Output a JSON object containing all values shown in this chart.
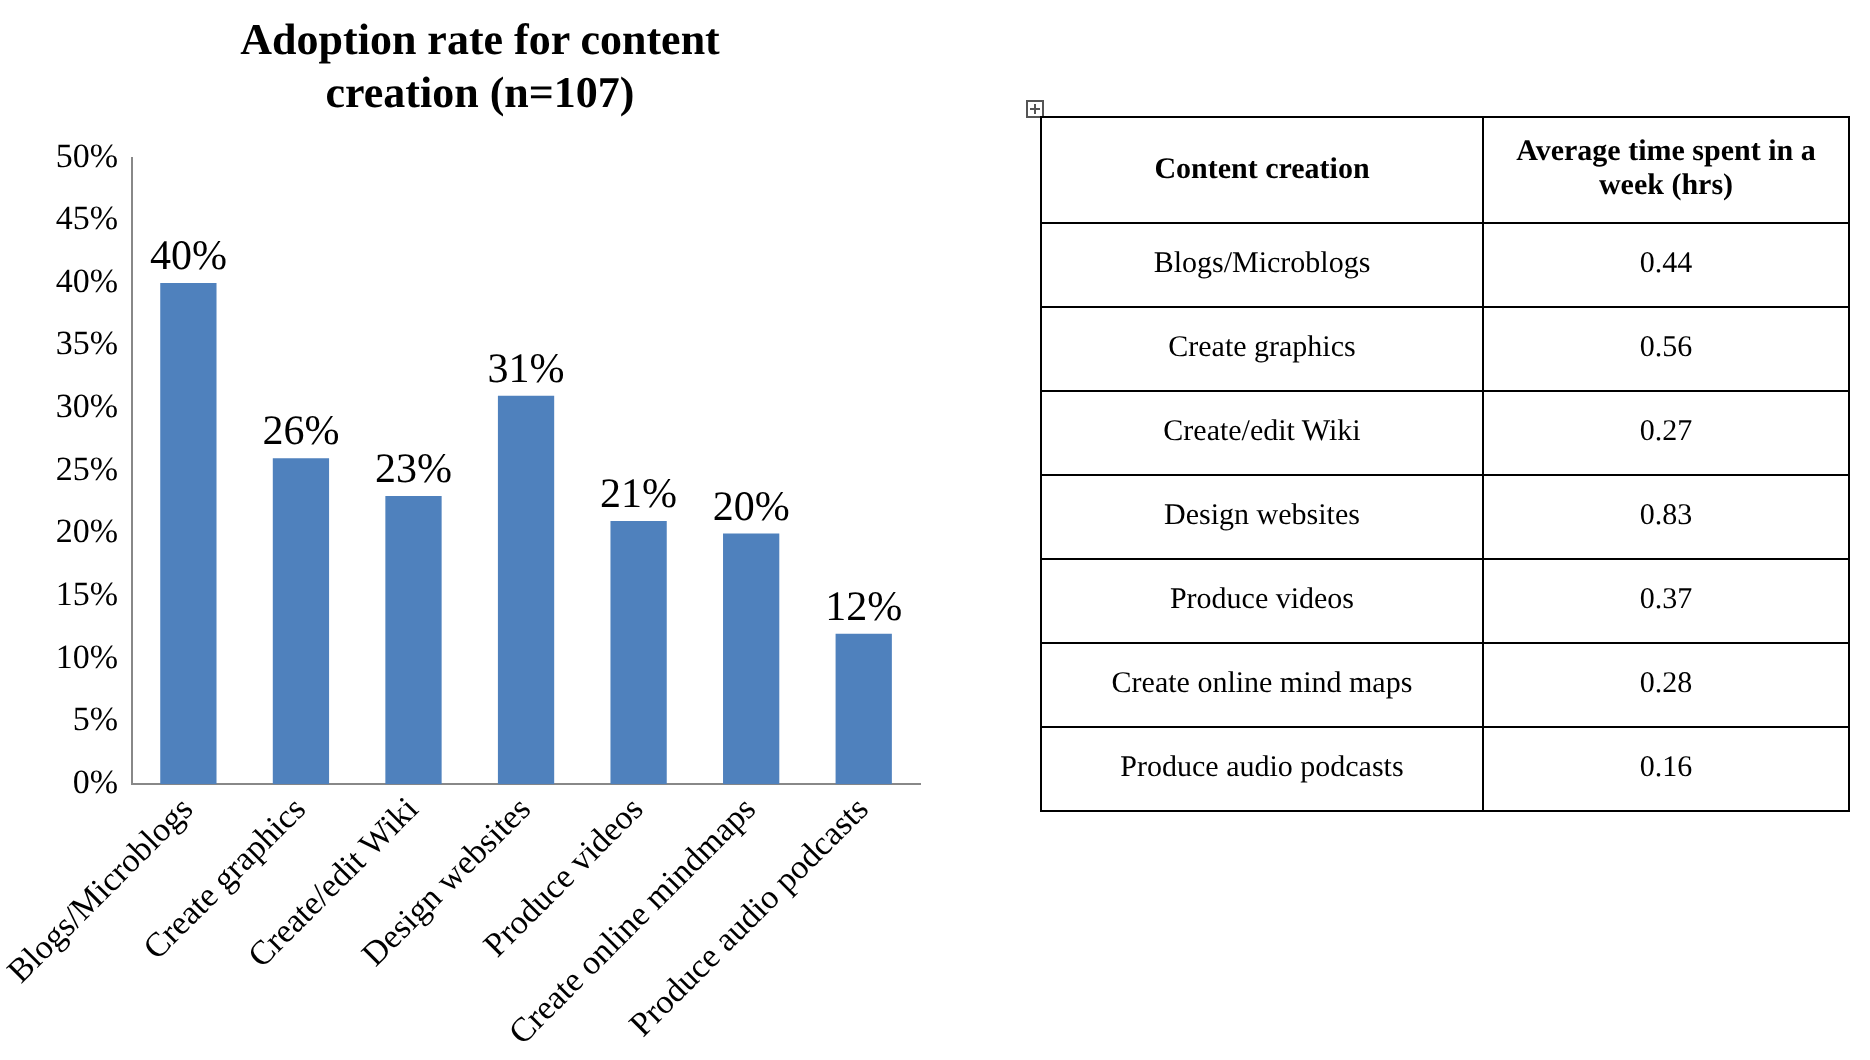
{
  "chart_data": [
    {
      "type": "bar",
      "title": "Adoption rate for content creation (n=107)",
      "categories": [
        "Blogs/Microblogs",
        "Create graphics",
        "Create/edit Wiki",
        "Design websites",
        "Produce videos",
        "Create online mindmaps",
        "Produce audio podcasts"
      ],
      "values": [
        40,
        26,
        23,
        31,
        21,
        20,
        12
      ],
      "value_labels": [
        "40%",
        "26%",
        "23%",
        "31%",
        "21%",
        "20%",
        "12%"
      ],
      "color": "#4f81bd",
      "ylim": [
        0,
        50
      ],
      "yticks": [
        {
          "value": 0,
          "label": "0%"
        },
        {
          "value": 5,
          "label": "5%"
        },
        {
          "value": 10,
          "label": "10%"
        },
        {
          "value": 15,
          "label": "15%"
        },
        {
          "value": 20,
          "label": "20%"
        },
        {
          "value": 25,
          "label": "25%"
        },
        {
          "value": 30,
          "label": "30%"
        },
        {
          "value": 35,
          "label": "35%"
        },
        {
          "value": 40,
          "label": "40%"
        },
        {
          "value": 45,
          "label": "45%"
        },
        {
          "value": 50,
          "label": "50%"
        }
      ],
      "grid": false,
      "legend": false
    },
    {
      "type": "other",
      "xlabel": "Content creation",
      "ylabel": "Average time spent in a week (hrs)",
      "categories": [
        "Blogs/Microblogs",
        "Create graphics",
        "Create/edit Wiki",
        "Design websites",
        "Produce videos",
        "Create online mind maps",
        "Produce audio podcasts"
      ],
      "values": [
        0.44,
        0.56,
        0.27,
        0.83,
        0.37,
        0.28,
        0.16
      ],
      "data_labels": true
    }
  ]
}
